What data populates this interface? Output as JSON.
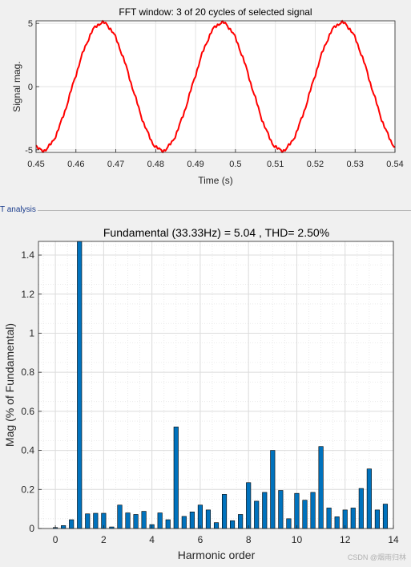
{
  "top_chart": {
    "title": "FFT window: 3 of 20 cycles of selected signal",
    "xlabel": "Time (s)",
    "ylabel": "Signal mag.",
    "xticks": [
      "0.45",
      "0.46",
      "0.47",
      "0.48",
      "0.49",
      "0.5",
      "0.51",
      "0.52",
      "0.53",
      "0.54"
    ],
    "yticks": [
      "-5",
      "0",
      "5"
    ]
  },
  "section_label": "T analysis",
  "bottom_chart": {
    "title": "Fundamental (33.33Hz) = 5.04 , THD= 2.50%",
    "xlabel": "Harmonic order",
    "ylabel": "Mag (% of Fundamental)",
    "xticks": [
      "0",
      "2",
      "4",
      "6",
      "8",
      "10",
      "12",
      "14"
    ],
    "yticks": [
      "0",
      "0.2",
      "0.4",
      "0.6",
      "0.8",
      "1",
      "1.2",
      "1.4"
    ]
  },
  "watermark": "CSDN @烟雨归林",
  "colors": {
    "signal": "#ff0000",
    "bar": "#0072bd",
    "axes_bg": "#ffffff"
  },
  "chart_data": [
    {
      "type": "line",
      "title": "FFT window: 3 of 20 cycles of selected signal",
      "xlabel": "Time (s)",
      "ylabel": "Signal mag.",
      "xlim": [
        0.45,
        0.54
      ],
      "ylim": [
        -5.2,
        5.2
      ],
      "grid": true,
      "series": [
        {
          "signal": "sinusoid",
          "amplitude": 5.04,
          "frequency_hz": 33.33,
          "peak_times": [
            0.4666,
            0.4966,
            0.5266
          ],
          "trough_times": [
            0.4516,
            0.4816,
            0.5116
          ],
          "start": [
            0.45,
            -4.7
          ],
          "end": [
            0.54,
            -4.6
          ]
        }
      ]
    },
    {
      "type": "bar",
      "title": "Fundamental (33.33Hz) = 5.04 , THD= 2.50%",
      "xlabel": "Harmonic order",
      "ylabel": "Mag (% of Fundamental)",
      "xlim": [
        -0.7,
        14
      ],
      "ylim": [
        0,
        1.47
      ],
      "grid": true,
      "x": [
        0,
        0.333,
        0.667,
        1,
        1.333,
        1.667,
        2,
        2.333,
        2.667,
        3,
        3.333,
        3.667,
        4,
        4.333,
        4.667,
        5,
        5.333,
        5.667,
        6,
        6.333,
        6.667,
        7,
        7.333,
        7.667,
        8,
        8.333,
        8.667,
        9,
        9.333,
        9.667,
        10,
        10.333,
        10.667,
        11,
        11.333,
        11.667,
        12,
        12.333,
        12.667,
        13,
        13.333,
        13.667
      ],
      "values": [
        0.005,
        0.015,
        0.045,
        1.47,
        0.075,
        0.078,
        0.078,
        0.008,
        0.12,
        0.08,
        0.072,
        0.088,
        0.02,
        0.08,
        0.045,
        0.52,
        0.062,
        0.085,
        0.12,
        0.095,
        0.03,
        0.175,
        0.04,
        0.072,
        0.235,
        0.14,
        0.185,
        0.4,
        0.195,
        0.05,
        0.18,
        0.145,
        0.185,
        0.42,
        0.105,
        0.06,
        0.095,
        0.105,
        0.205,
        0.305,
        0.095,
        0.125
      ]
    }
  ]
}
